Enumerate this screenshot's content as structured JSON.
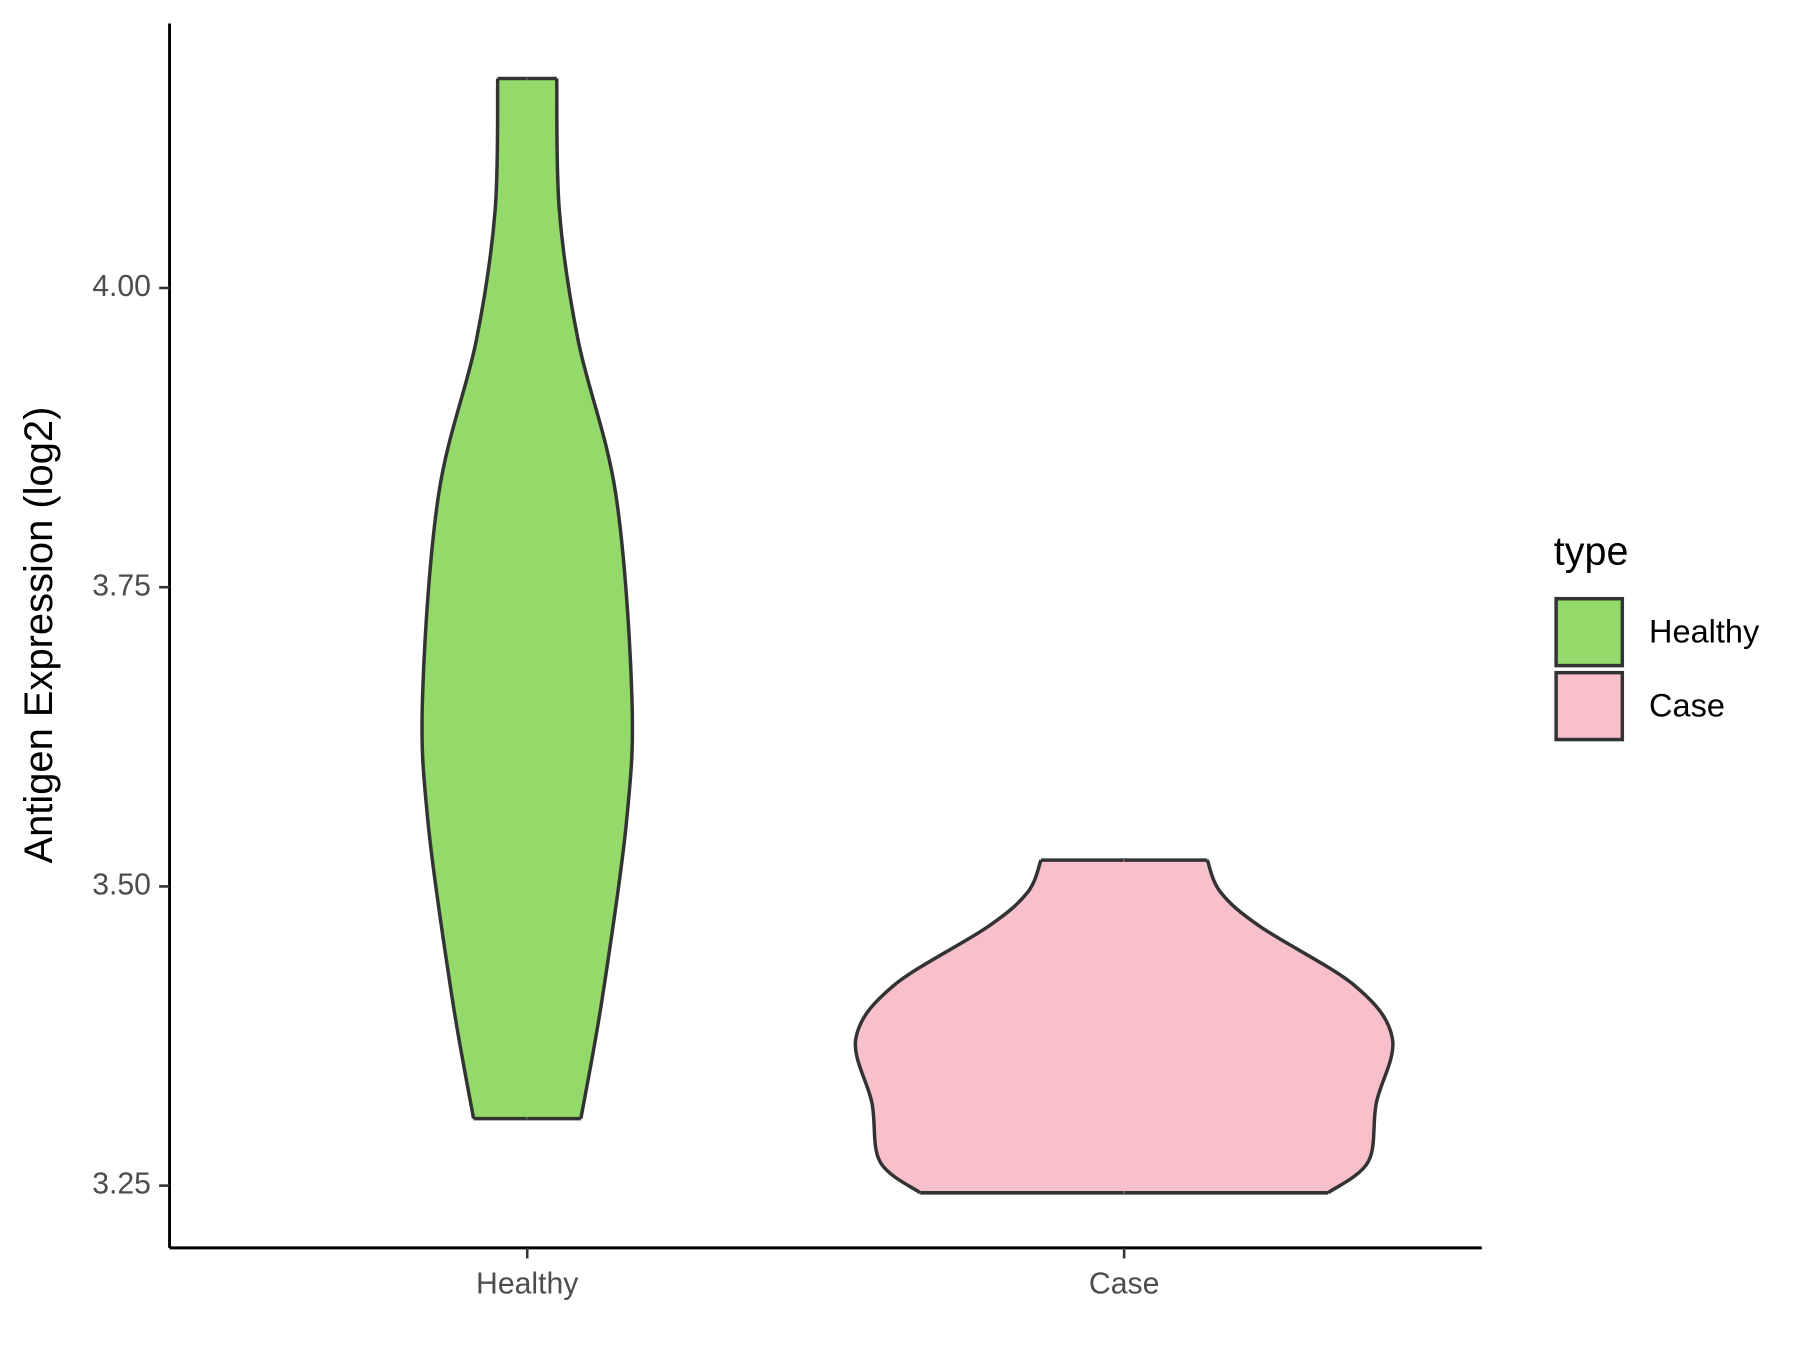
{
  "chart_data": {
    "type": "violin",
    "y_label": "Antigen Expression (log2)",
    "categories": [
      "Healthy",
      "Case"
    ],
    "legend_title": "type",
    "legend_position": "right",
    "ylim": [
      3.198,
      4.221
    ],
    "yticks": [
      {
        "value": 3.25,
        "label": "3.25"
      },
      {
        "value": 3.5,
        "label": "3.50"
      },
      {
        "value": 3.75,
        "label": "3.75"
      },
      {
        "value": 4,
        "label": "4.00"
      }
    ],
    "series": [
      {
        "name": "Healthy",
        "color": "#93da6a",
        "y": [
          4.175,
          4.064,
          3.956,
          3.828,
          3.66,
          3.554,
          3.407,
          3.306
        ],
        "density": [
          0.11,
          0.12,
          0.19,
          0.33,
          0.39,
          0.37,
          0.28,
          0.2
        ]
      },
      {
        "name": "Case",
        "color": "#f8c0cb",
        "y": [
          3.522,
          3.495,
          3.466,
          3.417,
          3.373,
          3.319,
          3.27,
          3.244
        ],
        "density": [
          0.31,
          0.36,
          0.51,
          0.86,
          1.0,
          0.94,
          0.91,
          0.76
        ]
      }
    ]
  }
}
